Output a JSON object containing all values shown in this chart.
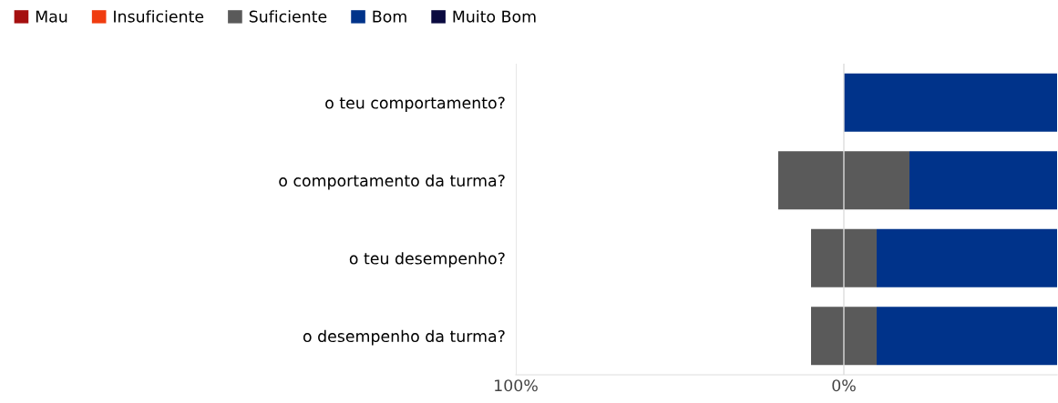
{
  "chart_data": {
    "type": "bar",
    "orientation": "horizontal",
    "categories": [
      "o teu comportamento?",
      "o comportamento da turma?",
      "o teu desempenho?",
      "o desempenho da turma?"
    ],
    "series": [
      {
        "name": "Mau",
        "color": "#a50f0f",
        "values": [
          null,
          null,
          null,
          null
        ],
        "base": [
          null,
          null,
          null,
          null
        ]
      },
      {
        "name": "Insuficiente",
        "color": "#f03c10",
        "values": [
          null,
          null,
          null,
          null
        ],
        "base": [
          null,
          null,
          null,
          null
        ]
      },
      {
        "name": "Suficiente",
        "color": "#5a5a5a",
        "values": [
          null,
          40,
          20,
          20
        ],
        "base": [
          null,
          -20,
          -10,
          -10
        ]
      },
      {
        "name": "Bom",
        "color": "#00338a",
        "values": [
          65,
          45,
          55,
          55
        ],
        "base": [
          0,
          20,
          10,
          10
        ]
      },
      {
        "name": "Muito Bom",
        "color": "#0a0a40",
        "values": [
          null,
          null,
          null,
          null
        ],
        "base": [
          null,
          null,
          null,
          null
        ]
      }
    ],
    "xlim": [
      -100,
      65
    ],
    "xticks": [
      {
        "value": -100,
        "label": "100%"
      },
      {
        "value": 0,
        "label": "0%"
      }
    ],
    "grid": "x",
    "legend": "top left"
  }
}
